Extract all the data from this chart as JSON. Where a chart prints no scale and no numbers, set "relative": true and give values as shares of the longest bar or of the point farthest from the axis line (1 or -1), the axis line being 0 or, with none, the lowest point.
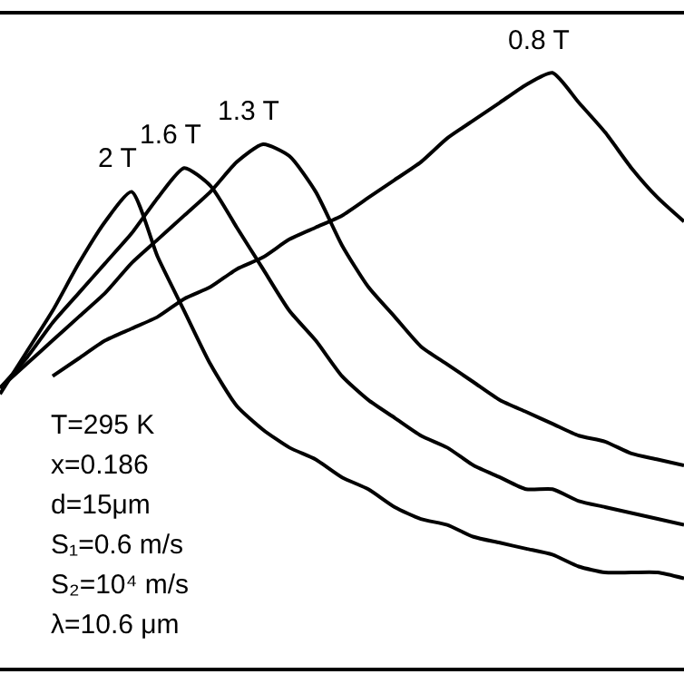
{
  "chart_data": {
    "type": "line",
    "relative": true,
    "legend": false,
    "marker": "none",
    "line_style": "solid",
    "categories": [
      null,
      null,
      null,
      null,
      null,
      null,
      null,
      null,
      null,
      null,
      null,
      null,
      null,
      null,
      null,
      null,
      null,
      null,
      null,
      null,
      null,
      null,
      null,
      null,
      null,
      null,
      null
    ],
    "series": [
      {
        "name": "2 T",
        "color": "#000000",
        "values": [
          0.46,
          0.53,
          0.6,
          0.68,
          0.75,
          0.8,
          0.69,
          0.6,
          0.51,
          0.44,
          0.4,
          0.37,
          0.35,
          0.32,
          0.3,
          0.27,
          0.25,
          0.24,
          0.22,
          0.21,
          0.2,
          0.19,
          0.17,
          0.16,
          0.16,
          0.16,
          0.15
        ]
      },
      {
        "name": "1.6 T",
        "color": "#000000",
        "values": [
          0.47,
          0.52,
          0.58,
          0.63,
          0.68,
          0.73,
          0.79,
          0.84,
          0.81,
          0.74,
          0.67,
          0.6,
          0.55,
          0.49,
          0.45,
          0.42,
          0.39,
          0.37,
          0.34,
          0.32,
          0.3,
          0.3,
          0.28,
          0.27,
          0.26,
          0.25,
          0.24
        ]
      },
      {
        "name": "1.3 T",
        "color": "#000000",
        "values": [
          0.47,
          0.51,
          0.55,
          0.59,
          0.63,
          0.68,
          0.72,
          0.76,
          0.8,
          0.85,
          0.88,
          0.86,
          0.8,
          0.71,
          0.64,
          0.59,
          0.54,
          0.51,
          0.48,
          0.45,
          0.43,
          0.41,
          0.39,
          0.38,
          0.36,
          0.35,
          0.34
        ]
      },
      {
        "name": "0.8 T",
        "color": "#000000",
        "values": [
          null,
          null,
          0.49,
          0.52,
          0.55,
          0.57,
          0.59,
          0.62,
          0.64,
          0.67,
          0.69,
          0.72,
          0.74,
          0.76,
          0.79,
          0.82,
          0.85,
          0.89,
          0.92,
          0.95,
          0.98,
          1.0,
          0.95,
          0.9,
          0.84,
          0.79,
          0.75
        ]
      }
    ],
    "annotations": [
      "T=295 K",
      "x=0.186",
      "d=15μm",
      "S₁=0.6 m/s",
      "S₂=10⁴ m/s",
      "λ=10.6 μm"
    ]
  }
}
